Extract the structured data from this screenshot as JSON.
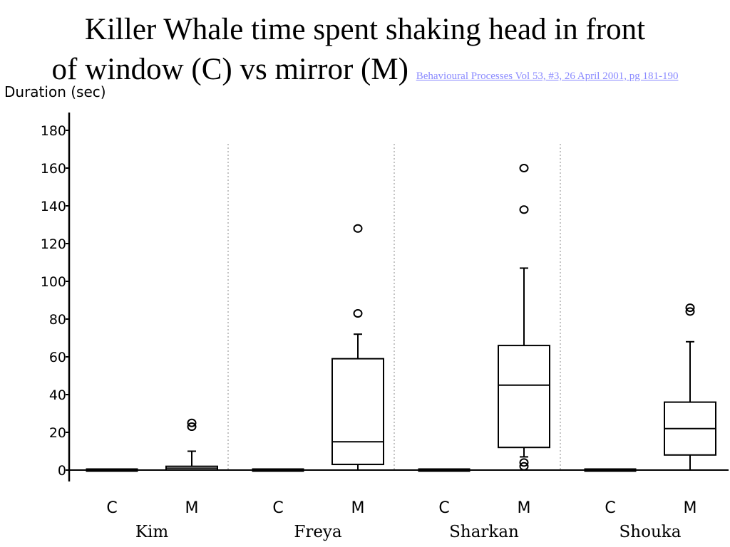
{
  "title": {
    "line1": "Killer Whale time spent shaking head in front",
    "line2": "of window (C) vs mirror (M)",
    "source": "Behavioural Processes  Vol 53, #3, 26 April 2001, pg 181-190"
  },
  "chart_data": {
    "type": "boxplot",
    "ylabel": "Duration (sec)",
    "ylim": [
      0,
      190
    ],
    "yticks": [
      0,
      20,
      40,
      60,
      80,
      100,
      120,
      140,
      160,
      180
    ],
    "groups": [
      {
        "name": "Kim",
        "boxes": [
          {
            "category": "C",
            "whisker_low": 0,
            "q1": 0,
            "median": 0,
            "q3": 0,
            "whisker_high": 0,
            "outliers": []
          },
          {
            "category": "M",
            "whisker_low": 0,
            "q1": 0,
            "median": 1,
            "q3": 2,
            "whisker_high": 10,
            "outliers": [
              23,
              25
            ]
          }
        ]
      },
      {
        "name": "Freya",
        "boxes": [
          {
            "category": "C",
            "whisker_low": 0,
            "q1": 0,
            "median": 0,
            "q3": 0,
            "whisker_high": 0,
            "outliers": []
          },
          {
            "category": "M",
            "whisker_low": 0,
            "q1": 3,
            "median": 15,
            "q3": 59,
            "whisker_high": 72,
            "outliers": [
              83,
              128
            ]
          }
        ]
      },
      {
        "name": "Sharkan",
        "boxes": [
          {
            "category": "C",
            "whisker_low": 0,
            "q1": 0,
            "median": 0,
            "q3": 0,
            "whisker_high": 0,
            "outliers": []
          },
          {
            "category": "M",
            "whisker_low": 7,
            "q1": 12,
            "median": 45,
            "q3": 66,
            "whisker_high": 107,
            "outliers": [
              2,
              4,
              138,
              160
            ]
          }
        ]
      },
      {
        "name": "Shouka",
        "boxes": [
          {
            "category": "C",
            "whisker_low": 0,
            "q1": 0,
            "median": 0,
            "q3": 0,
            "whisker_high": 0,
            "outliers": []
          },
          {
            "category": "M",
            "whisker_low": 0,
            "q1": 8,
            "median": 22,
            "q3": 36,
            "whisker_high": 68,
            "outliers": [
              84,
              86
            ]
          }
        ]
      }
    ],
    "grid": false,
    "group_separators": "dotted",
    "colors": {
      "ink": "#000000",
      "separator": "#888888"
    }
  }
}
